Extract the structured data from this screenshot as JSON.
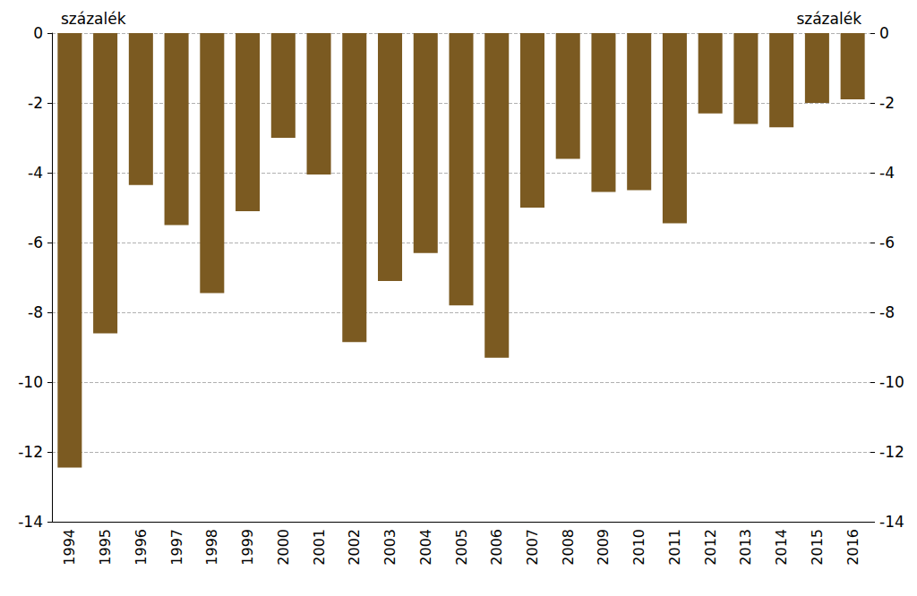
{
  "chart_data": {
    "type": "bar",
    "ylabel": "százalék",
    "y2label": "százalék",
    "categories": [
      "1994",
      "1995",
      "1996",
      "1997",
      "1998",
      "1999",
      "2000",
      "2001",
      "2002",
      "2003",
      "2004",
      "2005",
      "2006",
      "2007",
      "2008",
      "2009",
      "2010",
      "2011",
      "2012",
      "2013",
      "2014",
      "2015",
      "2016"
    ],
    "values": [
      -12.45,
      -8.6,
      -4.35,
      -5.5,
      -7.45,
      -5.1,
      -3.0,
      -4.05,
      -8.85,
      -7.1,
      -6.3,
      -7.8,
      -9.3,
      -5.0,
      -3.6,
      -4.55,
      -4.5,
      -5.45,
      -2.3,
      -2.6,
      -2.7,
      -2.0,
      -1.9
    ],
    "color": "#7b5a21",
    "ylim": [
      -14,
      0
    ],
    "yticks": [
      -14,
      -12,
      -10,
      -8,
      -6,
      -4,
      -2,
      0
    ],
    "y2lim": [
      -14,
      0
    ],
    "y2ticks": [
      -14,
      -12,
      -10,
      -8,
      -6,
      -4,
      -2,
      0
    ],
    "grid": true
  }
}
